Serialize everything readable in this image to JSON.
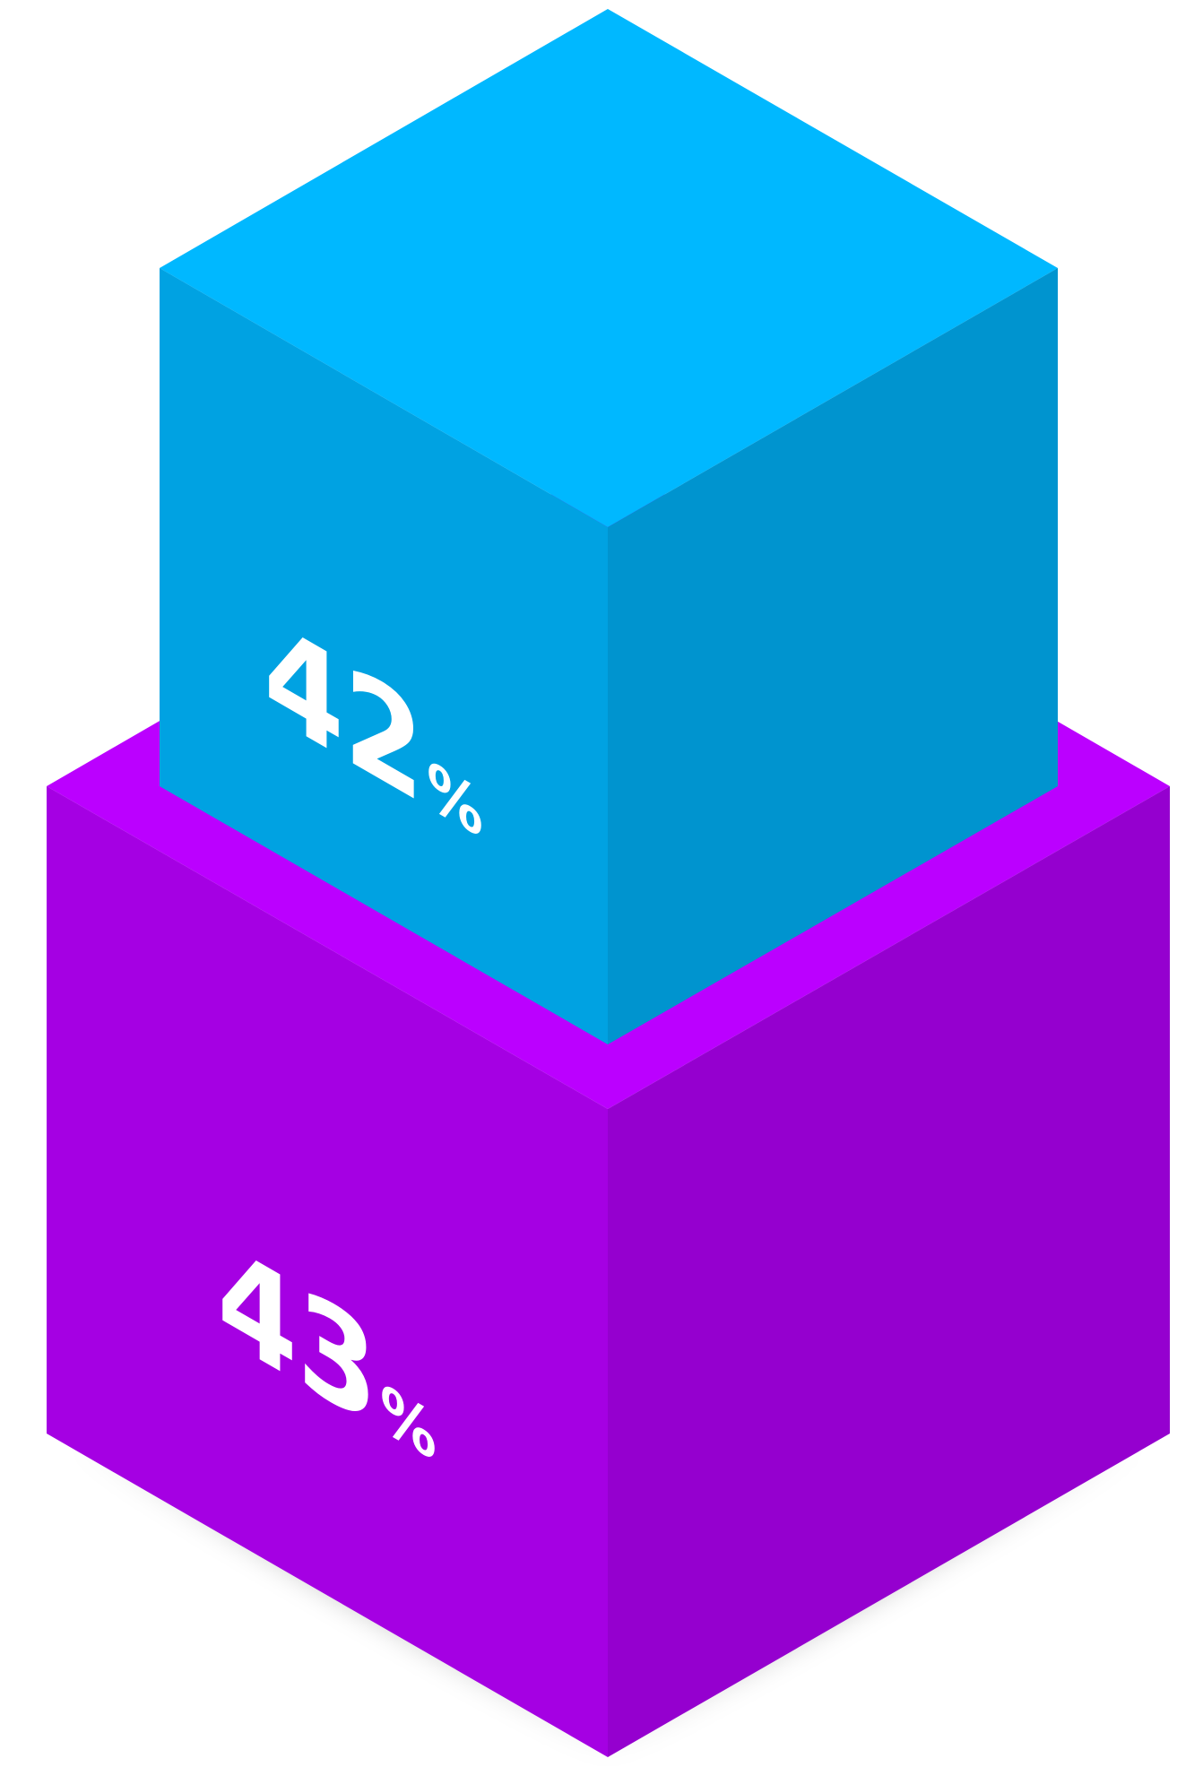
{
  "cubes": {
    "top": {
      "value": "42",
      "unit": "%",
      "colors": {
        "top_face": "#00B8FF",
        "left_face": "#00A2E2",
        "right_face": "#0094CF"
      }
    },
    "bottom": {
      "value": "43",
      "unit": "%",
      "colors": {
        "top_face": "#BB00FF",
        "left_face": "#A500E3",
        "right_face": "#9500CF"
      }
    }
  },
  "background": "#FFFFFF"
}
